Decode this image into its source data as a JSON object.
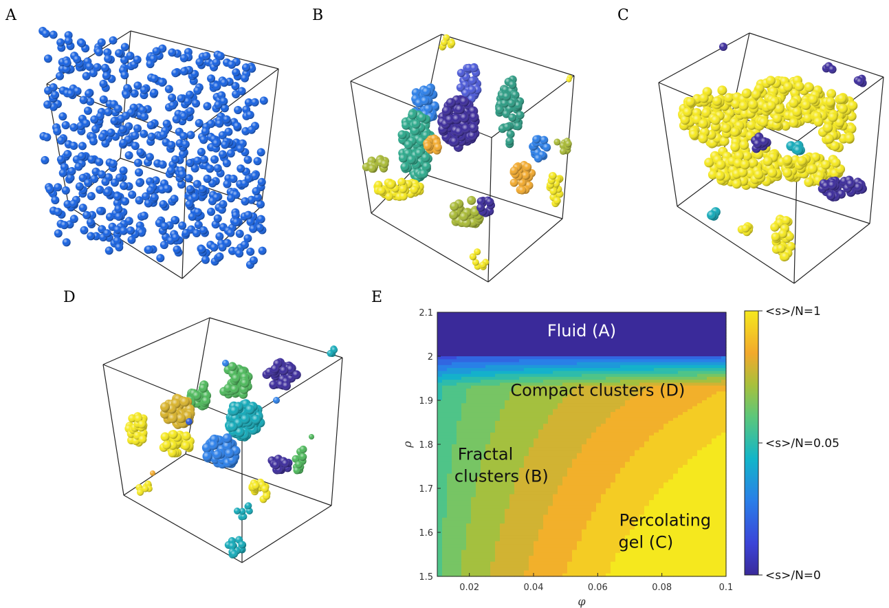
{
  "panels": {
    "a": "A",
    "b": "B",
    "c": "C",
    "d": "D",
    "e": "E"
  },
  "colors": {
    "fluid_blue": "#1560e0",
    "viridis_low": "#3a2a9a",
    "viridis_mid": "#12b5c9",
    "viridis_high": "#f5e81e",
    "orange": "#f2a92c",
    "olive": "#a8b934"
  },
  "chart_data": {
    "type": "heatmap",
    "title": "",
    "xlabel": "φ",
    "ylabel": "ρ",
    "xlim": [
      0.01,
      0.1
    ],
    "ylim": [
      1.5,
      2.1
    ],
    "x_ticks": [
      "0.02",
      "0.04",
      "0.06",
      "0.08",
      "0.1"
    ],
    "y_ticks": [
      "1.5",
      "1.6",
      "1.7",
      "1.8",
      "1.9",
      "2",
      "2.1"
    ],
    "colorbar": {
      "labels": [
        "<s>/N=1",
        "<s>/N=0.05",
        "<s>/N=0"
      ],
      "scale": "nonlinear"
    },
    "regions": [
      {
        "label": "Fluid (A)",
        "x": 0.055,
        "y": 2.045
      },
      {
        "label": "Compact clusters (D)",
        "x": 0.06,
        "y": 1.91
      },
      {
        "label": "Fractal",
        "x": 0.025,
        "y": 1.765
      },
      {
        "label": "clusters (B)",
        "x": 0.03,
        "y": 1.715
      },
      {
        "label": "Percolating",
        "x": 0.081,
        "y": 1.615
      },
      {
        "label": "gel (C)",
        "x": 0.075,
        "y": 1.565
      }
    ]
  }
}
